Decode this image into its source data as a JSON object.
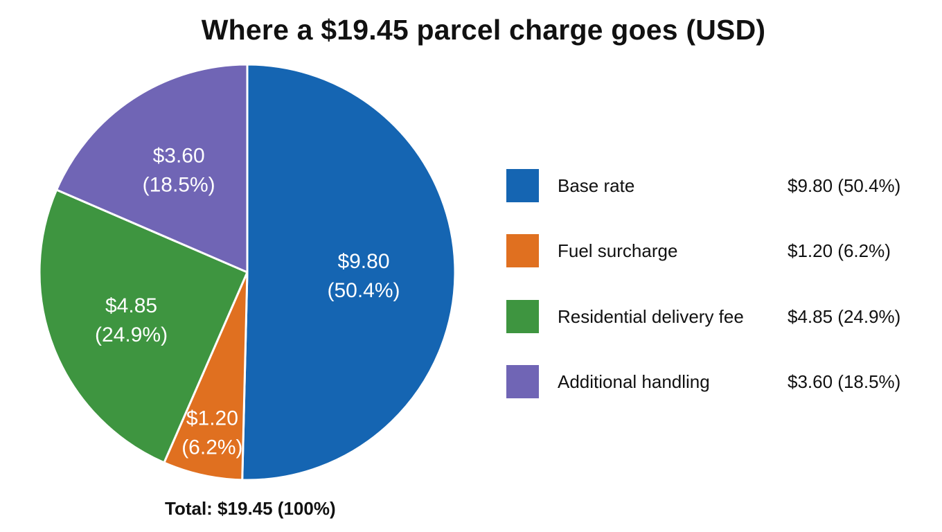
{
  "chart_data": {
    "type": "pie",
    "title": "Where a $19.45 parcel charge goes (USD)",
    "total_label": "Total: $19.45 (100%)",
    "slices": [
      {
        "name": "Base rate",
        "value": 9.8,
        "percent": 50.4,
        "color": "#1565b2",
        "label_value": "$9.80",
        "label_percent": "(50.4%)",
        "legend_value": "$9.80 (50.4%)"
      },
      {
        "name": "Fuel surcharge",
        "value": 1.2,
        "percent": 6.2,
        "color": "#e07020",
        "label_value": "$1.20",
        "label_percent": "(6.2%)",
        "legend_value": "$1.20 (6.2%)"
      },
      {
        "name": "Residential delivery fee",
        "value": 4.85,
        "percent": 24.9,
        "color": "#3e9540",
        "label_value": "$4.85",
        "label_percent": "(24.9%)",
        "legend_value": "$4.85 (24.9%)"
      },
      {
        "name": "Additional handling",
        "value": 3.6,
        "percent": 18.5,
        "color": "#7065b5",
        "label_value": "$3.60",
        "label_percent": "(18.5%)",
        "legend_value": "$3.60 (18.5%)"
      }
    ],
    "legend_position": "right"
  }
}
